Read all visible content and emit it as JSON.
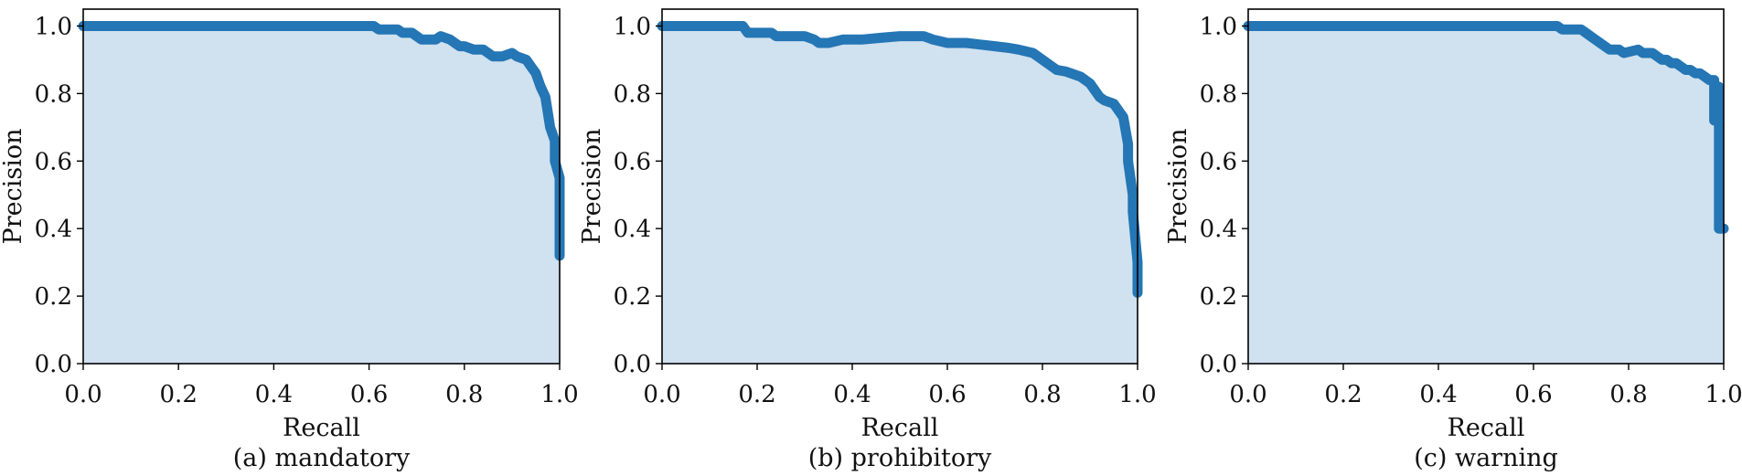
{
  "chart_data": [
    {
      "type": "area",
      "caption": "(a) mandatory",
      "xlabel": "Recall",
      "ylabel": "Precision",
      "xlim": [
        0.0,
        1.0
      ],
      "ylim": [
        0.0,
        1.05
      ],
      "xticks": [
        "0.0",
        "0.2",
        "0.4",
        "0.6",
        "0.8",
        "1.0"
      ],
      "yticks": [
        "0.0",
        "0.2",
        "0.4",
        "0.6",
        "0.8",
        "1.0"
      ],
      "grid": false,
      "series": [
        {
          "x": [
            0.0,
            0.61,
            0.62,
            0.66,
            0.67,
            0.69,
            0.7,
            0.71,
            0.74,
            0.75,
            0.77,
            0.78,
            0.79,
            0.8,
            0.82,
            0.84,
            0.85,
            0.86,
            0.88,
            0.9,
            0.91,
            0.93,
            0.94,
            0.95,
            0.96,
            0.97,
            0.98,
            0.99,
            0.99,
            1.0,
            1.0
          ],
          "y": [
            1.0,
            1.0,
            0.99,
            0.99,
            0.98,
            0.98,
            0.97,
            0.96,
            0.96,
            0.97,
            0.96,
            0.95,
            0.94,
            0.94,
            0.93,
            0.93,
            0.92,
            0.91,
            0.91,
            0.92,
            0.91,
            0.9,
            0.88,
            0.86,
            0.82,
            0.79,
            0.7,
            0.66,
            0.6,
            0.55,
            0.32
          ]
        }
      ]
    },
    {
      "type": "area",
      "caption": "(b) prohibitory",
      "xlabel": "Recall",
      "ylabel": "Precision",
      "xlim": [
        0.0,
        1.0
      ],
      "ylim": [
        0.0,
        1.05
      ],
      "xticks": [
        "0.0",
        "0.2",
        "0.4",
        "0.6",
        "0.8",
        "1.0"
      ],
      "yticks": [
        "0.0",
        "0.2",
        "0.4",
        "0.6",
        "0.8",
        "1.0"
      ],
      "grid": false,
      "series": [
        {
          "x": [
            0.0,
            0.17,
            0.18,
            0.23,
            0.24,
            0.3,
            0.32,
            0.33,
            0.35,
            0.38,
            0.42,
            0.46,
            0.5,
            0.55,
            0.57,
            0.6,
            0.64,
            0.67,
            0.7,
            0.73,
            0.75,
            0.78,
            0.8,
            0.82,
            0.83,
            0.85,
            0.88,
            0.9,
            0.91,
            0.92,
            0.93,
            0.95,
            0.96,
            0.97,
            0.98,
            0.98,
            0.99,
            0.99,
            1.0,
            1.0
          ],
          "y": [
            1.0,
            1.0,
            0.98,
            0.98,
            0.97,
            0.97,
            0.96,
            0.95,
            0.95,
            0.96,
            0.96,
            0.965,
            0.97,
            0.97,
            0.96,
            0.95,
            0.95,
            0.945,
            0.94,
            0.935,
            0.93,
            0.92,
            0.9,
            0.88,
            0.87,
            0.865,
            0.85,
            0.83,
            0.81,
            0.79,
            0.78,
            0.77,
            0.75,
            0.73,
            0.65,
            0.6,
            0.5,
            0.45,
            0.3,
            0.21
          ]
        }
      ]
    },
    {
      "type": "area",
      "caption": "(c) warning",
      "xlabel": "Recall",
      "ylabel": "Precision",
      "xlim": [
        0.0,
        1.0
      ],
      "ylim": [
        0.0,
        1.05
      ],
      "xticks": [
        "0.0",
        "0.2",
        "0.4",
        "0.6",
        "0.8",
        "1.0"
      ],
      "yticks": [
        "0.0",
        "0.2",
        "0.4",
        "0.6",
        "0.8",
        "1.0"
      ],
      "grid": false,
      "series": [
        {
          "x": [
            0.0,
            0.65,
            0.66,
            0.7,
            0.71,
            0.72,
            0.73,
            0.74,
            0.75,
            0.76,
            0.78,
            0.79,
            0.82,
            0.83,
            0.85,
            0.86,
            0.87,
            0.88,
            0.89,
            0.9,
            0.91,
            0.92,
            0.93,
            0.94,
            0.95,
            0.96,
            0.97,
            0.98,
            0.98,
            0.99,
            0.99,
            1.0
          ],
          "y": [
            1.0,
            1.0,
            0.99,
            0.99,
            0.98,
            0.97,
            0.96,
            0.95,
            0.94,
            0.93,
            0.93,
            0.92,
            0.93,
            0.92,
            0.92,
            0.91,
            0.9,
            0.9,
            0.89,
            0.89,
            0.88,
            0.87,
            0.87,
            0.86,
            0.86,
            0.85,
            0.84,
            0.84,
            0.72,
            0.82,
            0.4,
            0.4
          ]
        }
      ]
    }
  ],
  "colors": {
    "line": "#2476b5",
    "fill": "#d0e1ef",
    "axis": "#000000"
  }
}
